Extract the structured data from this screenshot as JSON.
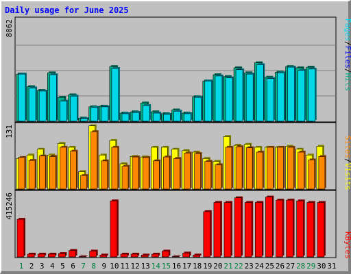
{
  "title": "Daily usage for June 2025",
  "colors": {
    "hits": "#00b088",
    "files": "#0000ff",
    "pages": "#00d8e8",
    "visits": "#ffff00",
    "sites": "#ff8800",
    "kbytes": "#ff0000",
    "title": "#0000ff",
    "day_weekday": "#000000",
    "day_weekend": "#008040",
    "panel_bg": "#c0c0c0"
  },
  "labels": {
    "hits": "Hits",
    "files": "Files",
    "pages": "Pages",
    "visits": "Visits",
    "sites": "Sites",
    "kbytes": "KBytes",
    "sep": "/"
  },
  "chart_data": [
    {
      "type": "bar",
      "title": "Daily usage for June 2025",
      "ymax_label": "8062",
      "ylim": [
        0,
        8062
      ],
      "categories": [
        "1",
        "2",
        "3",
        "4",
        "5",
        "6",
        "7",
        "8",
        "9",
        "10",
        "11",
        "12",
        "13",
        "14",
        "15",
        "16",
        "17",
        "18",
        "19",
        "20",
        "21",
        "22",
        "23",
        "24",
        "25",
        "26",
        "27",
        "28",
        "29",
        "30",
        "31"
      ],
      "series": [
        {
          "name": "Hits",
          "values": [
            3750,
            2750,
            2450,
            3850,
            1900,
            2100,
            250,
            1150,
            1200,
            4350,
            650,
            750,
            1450,
            750,
            600,
            900,
            650,
            1950,
            3200,
            3700,
            3550,
            4250,
            3850,
            4650,
            3500,
            3900,
            4350,
            4250,
            4300,
            0,
            0
          ]
        },
        {
          "name": "Files",
          "values": [
            3750,
            2650,
            2400,
            3700,
            1600,
            2000,
            200,
            1100,
            1150,
            4200,
            600,
            700,
            1250,
            650,
            550,
            800,
            600,
            1900,
            3200,
            3600,
            3450,
            4100,
            3750,
            4500,
            3400,
            3850,
            4300,
            4050,
            4150,
            0,
            0
          ]
        },
        {
          "name": "Pages",
          "values": [
            3750,
            2650,
            2400,
            3700,
            1600,
            2000,
            200,
            1100,
            1150,
            4200,
            600,
            700,
            1250,
            650,
            550,
            800,
            600,
            1900,
            3200,
            3600,
            3450,
            4100,
            3750,
            4500,
            3400,
            3850,
            4300,
            4050,
            4150,
            0,
            0
          ]
        }
      ]
    },
    {
      "type": "bar",
      "ymax_label": "131",
      "ylim": [
        0,
        131
      ],
      "categories": [
        "1",
        "2",
        "3",
        "4",
        "5",
        "6",
        "7",
        "8",
        "9",
        "10",
        "11",
        "12",
        "13",
        "14",
        "15",
        "16",
        "17",
        "18",
        "19",
        "20",
        "21",
        "22",
        "23",
        "24",
        "25",
        "26",
        "27",
        "28",
        "29",
        "30",
        "31"
      ],
      "series": [
        {
          "name": "Visits",
          "values": [
            63,
            70,
            82,
            70,
            94,
            86,
            36,
            130,
            70,
            100,
            52,
            67,
            66,
            86,
            86,
            82,
            79,
            76,
            63,
            57,
            108,
            90,
            92,
            86,
            86,
            86,
            88,
            82,
            70,
            88,
            0
          ]
        },
        {
          "name": "Sites",
          "values": [
            65,
            59,
            68,
            67,
            86,
            78,
            28,
            118,
            58,
            86,
            47,
            66,
            65,
            58,
            66,
            63,
            74,
            73,
            57,
            50,
            86,
            87,
            85,
            76,
            86,
            86,
            86,
            76,
            60,
            67,
            0
          ]
        }
      ]
    },
    {
      "type": "bar",
      "ymax_label": "415246",
      "ylim": [
        0,
        415246
      ],
      "categories": [
        "1",
        "2",
        "3",
        "4",
        "5",
        "6",
        "7",
        "8",
        "9",
        "10",
        "11",
        "12",
        "13",
        "14",
        "15",
        "16",
        "17",
        "18",
        "19",
        "20",
        "21",
        "22",
        "23",
        "24",
        "25",
        "26",
        "27",
        "28",
        "29",
        "30",
        "31"
      ],
      "series": [
        {
          "name": "KBytes",
          "values": [
            245000,
            18000,
            18000,
            18000,
            22000,
            42000,
            4000,
            38000,
            12000,
            365000,
            18000,
            18000,
            12000,
            18000,
            38000,
            4000,
            25000,
            12000,
            295000,
            355000,
            355000,
            385000,
            355000,
            355000,
            390000,
            370000,
            370000,
            365000,
            355000,
            355000,
            0
          ]
        }
      ]
    }
  ]
}
